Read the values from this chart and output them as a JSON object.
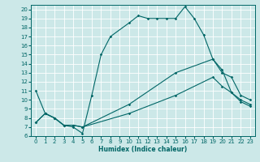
{
  "xlabel": "Humidex (Indice chaleur)",
  "bg_color": "#cce8e8",
  "grid_color": "#ffffff",
  "line_color": "#006666",
  "xlim": [
    -0.5,
    23.5
  ],
  "ylim": [
    6,
    20.5
  ],
  "xticks": [
    0,
    1,
    2,
    3,
    4,
    5,
    6,
    7,
    8,
    9,
    10,
    11,
    12,
    13,
    14,
    15,
    16,
    17,
    18,
    19,
    20,
    21,
    22,
    23
  ],
  "yticks": [
    6,
    7,
    8,
    9,
    10,
    11,
    12,
    13,
    14,
    15,
    16,
    17,
    18,
    19,
    20
  ],
  "line1_x": [
    0,
    1,
    2,
    3,
    4,
    5,
    6,
    7,
    8,
    10,
    11,
    12,
    13,
    14,
    15,
    16,
    17,
    18,
    19,
    20,
    21,
    22,
    23
  ],
  "line1_y": [
    11,
    8.5,
    8,
    7.2,
    7,
    6.3,
    10.5,
    15,
    17,
    18.5,
    19.3,
    19,
    19,
    19,
    19,
    20.3,
    19,
    17.2,
    14.5,
    13,
    12.5,
    10.5,
    10
  ],
  "line2_x": [
    0,
    1,
    2,
    3,
    4,
    5,
    10,
    15,
    19,
    20,
    21,
    22,
    23
  ],
  "line2_y": [
    7.5,
    8.5,
    8,
    7.2,
    7.2,
    7.0,
    9.5,
    13.0,
    14.5,
    13.3,
    10.8,
    10.0,
    9.5
  ],
  "line3_x": [
    0,
    1,
    2,
    3,
    4,
    5,
    10,
    15,
    19,
    20,
    21,
    22,
    23
  ],
  "line3_y": [
    7.5,
    8.5,
    8,
    7.2,
    7.2,
    7.0,
    8.5,
    10.5,
    12.5,
    11.5,
    10.8,
    9.8,
    9.3
  ]
}
